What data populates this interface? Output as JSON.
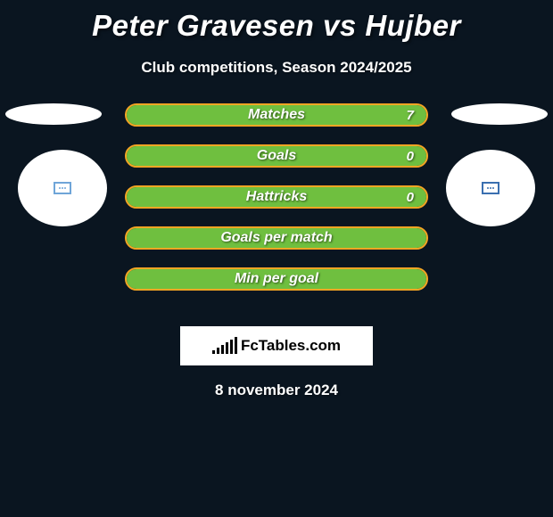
{
  "title": "Peter Gravesen vs Hujber",
  "subtitle": "Club competitions, Season 2024/2025",
  "date": "8 november 2024",
  "logo_text": "FcTables.com",
  "colors": {
    "background": "#0a1520",
    "bar_fill": "#6fbf3f",
    "bar_border": "#f5a623",
    "badge_left": "#6fa5d8",
    "badge_right": "#3a6fb0",
    "text": "#ffffff"
  },
  "stats": [
    {
      "label": "Matches",
      "value_right": "7",
      "fill_pct": 100,
      "show_value": true
    },
    {
      "label": "Goals",
      "value_right": "0",
      "fill_pct": 100,
      "show_value": true
    },
    {
      "label": "Hattricks",
      "value_right": "0",
      "fill_pct": 100,
      "show_value": true
    },
    {
      "label": "Goals per match",
      "value_right": "",
      "fill_pct": 100,
      "show_value": false
    },
    {
      "label": "Min per goal",
      "value_right": "",
      "fill_pct": 100,
      "show_value": false
    }
  ],
  "logo_bar_heights": [
    4,
    7,
    10,
    13,
    16,
    19
  ]
}
